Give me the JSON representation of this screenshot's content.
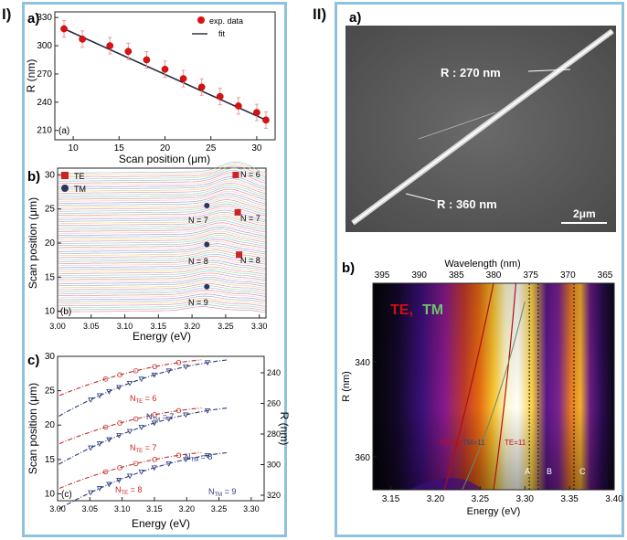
{
  "panels": {
    "I": "I)",
    "II": "II)"
  },
  "chart_data": [
    {
      "id": "Ia",
      "type": "scatter",
      "label": "a)",
      "inset_label": "(a)",
      "xlabel": "Scan position (μm)",
      "ylabel": "R (nm)",
      "xlim": [
        8,
        32
      ],
      "ylim": [
        200,
        336
      ],
      "xticks": [
        10,
        15,
        20,
        25,
        30
      ],
      "yticks": [
        210,
        240,
        270,
        300,
        330
      ],
      "legend": [
        "exp. data",
        "fit"
      ],
      "x": [
        9,
        11,
        14,
        16,
        18,
        20,
        22,
        24,
        26,
        28,
        30,
        31
      ],
      "y": [
        318,
        307,
        300,
        294,
        285,
        275,
        265,
        256,
        246,
        236,
        229,
        221
      ],
      "fit": {
        "x": [
          9,
          31
        ],
        "y": [
          318,
          221
        ]
      }
    },
    {
      "id": "Ib",
      "type": "line",
      "label": "b)",
      "inset_label": "(b)",
      "xlabel": "Energy (eV)",
      "ylabel": "Scan position (μm)",
      "xlim": [
        3.0,
        3.31
      ],
      "ylim": [
        9,
        31
      ],
      "xticks": [
        "3.00",
        "3.05",
        "3.10",
        "3.15",
        "3.20",
        "3.25",
        "3.30"
      ],
      "yticks": [
        10,
        15,
        20,
        25,
        30
      ],
      "legend": [
        "TE",
        "TM"
      ],
      "annotations": [
        "N = 6",
        "N = 7",
        "N = 7",
        "N = 8",
        "N = 8",
        "N = 9"
      ],
      "te_markers": {
        "x": [
          3.265,
          3.268,
          3.27
        ],
        "y": [
          30,
          24.5,
          18.3
        ]
      },
      "tm_markers": {
        "x": [
          3.222,
          3.222,
          3.222
        ],
        "y": [
          25.5,
          19.8,
          13.6
        ]
      }
    },
    {
      "id": "Ic",
      "type": "line",
      "label": "c)",
      "inset_label": "(c)",
      "xlabel": "Energy (eV)",
      "ylabel": "Scan position (μm)",
      "y2label": "R (nm)",
      "xlim": [
        3.0,
        3.32
      ],
      "ylim": [
        9,
        30
      ],
      "y2lim": [
        240,
        320
      ],
      "xticks": [
        "3.00",
        "3.05",
        "3.10",
        "3.15",
        "3.20",
        "3.25",
        "3.30"
      ],
      "yticks": [
        10,
        15,
        20,
        25,
        30
      ],
      "y2ticks": [
        240,
        260,
        280,
        300,
        320
      ],
      "annotations": [
        "N",
        "TE",
        " = 6",
        "N",
        "TM",
        " = 7",
        "N",
        "TE",
        " = 7",
        "N",
        "TM",
        " = 8",
        "N",
        "TE",
        " = 8",
        "N",
        "TM",
        " = 9"
      ],
      "series": [
        {
          "name": "TE N=6",
          "E0": 3.29,
          "y0": 29.5,
          "slope": 0.042
        },
        {
          "name": "TM N=7",
          "E0": 3.325,
          "y0": 29.5,
          "slope": 0.038
        },
        {
          "name": "TE N=7",
          "E0": 3.29,
          "y0": 22.5,
          "slope": 0.042
        },
        {
          "name": "TM N=8",
          "E0": 3.325,
          "y0": 22.5,
          "slope": 0.038
        },
        {
          "name": "TE N=8",
          "E0": 3.29,
          "y0": 16.0,
          "slope": 0.042
        },
        {
          "name": "TM N=9",
          "E0": 3.325,
          "y0": 16.0,
          "slope": 0.038
        }
      ]
    },
    {
      "id": "IIb",
      "type": "heatmap",
      "label": "b)",
      "top_xlabel": "Wavelength (nm)",
      "xlabel": "Energy (eV)",
      "ylabel": "R (nm)",
      "xlim": [
        3.13,
        3.4
      ],
      "xticks": [
        "3.15",
        "3.20",
        "3.25",
        "3.30",
        "3.35",
        "3.40"
      ],
      "top_ticks": [
        "395",
        "390",
        "385",
        "380",
        "375",
        "370",
        "365"
      ],
      "yticks": [
        "340",
        "360"
      ],
      "legend_te": "TE,",
      "legend_tm": "TM",
      "mode_labels": [
        "TE=10",
        "TM=11",
        "TE=11"
      ],
      "peak_labels": [
        "A",
        "B",
        "C"
      ],
      "peaks_eV": [
        3.305,
        3.315,
        3.355
      ]
    }
  ],
  "sem": {
    "label": "a)",
    "r1": "R : 270 nm",
    "r2": "R : 360 nm",
    "scale": "2μm"
  }
}
